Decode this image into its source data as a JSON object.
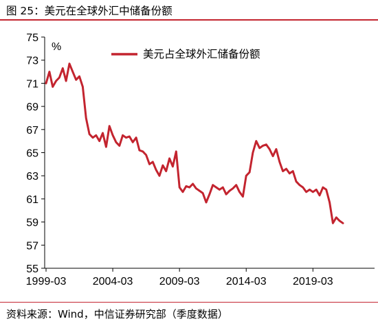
{
  "figure": {
    "title": "图 25：美元在全球外汇中储备份额",
    "source": "资料来源：Wind，中信证券研究部（季度数据）"
  },
  "chart_data": {
    "type": "line",
    "title": "图 25：美元在全球外汇中储备份额",
    "unit_label": "%",
    "xlabel": "",
    "ylabel": "",
    "ylim": [
      55,
      75
    ],
    "yticks": [
      "55",
      "57",
      "59",
      "61",
      "63",
      "65",
      "67",
      "69",
      "71",
      "73",
      "75"
    ],
    "xticks": [
      "1999-03",
      "2004-03",
      "2009-03",
      "2014-03",
      "2019-03"
    ],
    "grid": false,
    "legend_position": "top-center",
    "line_color": "#c3242f",
    "series": [
      {
        "name": "美元占全球外汇储备份额",
        "x": [
          "1999-03",
          "1999-06",
          "1999-09",
          "1999-12",
          "2000-03",
          "2000-06",
          "2000-09",
          "2000-12",
          "2001-03",
          "2001-06",
          "2001-09",
          "2001-12",
          "2002-03",
          "2002-06",
          "2002-09",
          "2002-12",
          "2003-03",
          "2003-06",
          "2003-09",
          "2003-12",
          "2004-03",
          "2004-06",
          "2004-09",
          "2004-12",
          "2005-03",
          "2005-06",
          "2005-09",
          "2005-12",
          "2006-03",
          "2006-06",
          "2006-09",
          "2006-12",
          "2007-03",
          "2007-06",
          "2007-09",
          "2007-12",
          "2008-03",
          "2008-06",
          "2008-09",
          "2008-12",
          "2009-03",
          "2009-06",
          "2009-09",
          "2009-12",
          "2010-03",
          "2010-06",
          "2010-09",
          "2010-12",
          "2011-03",
          "2011-06",
          "2011-09",
          "2011-12",
          "2012-03",
          "2012-06",
          "2012-09",
          "2012-12",
          "2013-03",
          "2013-06",
          "2013-09",
          "2013-12",
          "2014-03",
          "2014-06",
          "2014-09",
          "2014-12",
          "2015-03",
          "2015-06",
          "2015-09",
          "2015-12",
          "2016-03",
          "2016-06",
          "2016-09",
          "2016-12",
          "2017-03",
          "2017-06",
          "2017-09",
          "2017-12",
          "2018-03",
          "2018-06",
          "2018-09",
          "2018-12",
          "2019-03",
          "2019-06",
          "2019-09",
          "2019-12",
          "2020-03",
          "2020-06",
          "2020-09",
          "2020-12",
          "2021-03",
          "2021-06"
        ],
        "values": [
          71.0,
          72.0,
          70.7,
          71.2,
          71.5,
          72.3,
          71.2,
          72.7,
          72.0,
          71.3,
          71.6,
          70.7,
          68.0,
          66.6,
          66.3,
          66.5,
          66.0,
          66.7,
          65.5,
          67.3,
          66.5,
          65.9,
          65.6,
          66.5,
          66.3,
          66.4,
          65.9,
          66.3,
          65.2,
          65.1,
          64.8,
          64.0,
          64.2,
          63.5,
          63.0,
          63.9,
          63.4,
          64.5,
          63.8,
          65.1,
          62.0,
          61.6,
          62.1,
          62.0,
          62.3,
          61.9,
          61.7,
          61.5,
          60.7,
          61.4,
          62.2,
          62.0,
          61.8,
          62.0,
          61.4,
          61.7,
          61.9,
          62.2,
          61.6,
          61.2,
          63.0,
          63.3,
          65.0,
          66.0,
          65.4,
          65.6,
          65.7,
          65.3,
          64.7,
          65.3,
          64.2,
          63.4,
          63.6,
          63.2,
          63.4,
          62.5,
          62.2,
          62.0,
          61.6,
          61.8,
          61.6,
          61.8,
          61.3,
          62.0,
          61.8,
          60.7,
          58.9,
          59.4,
          59.1,
          58.9
        ]
      }
    ]
  }
}
